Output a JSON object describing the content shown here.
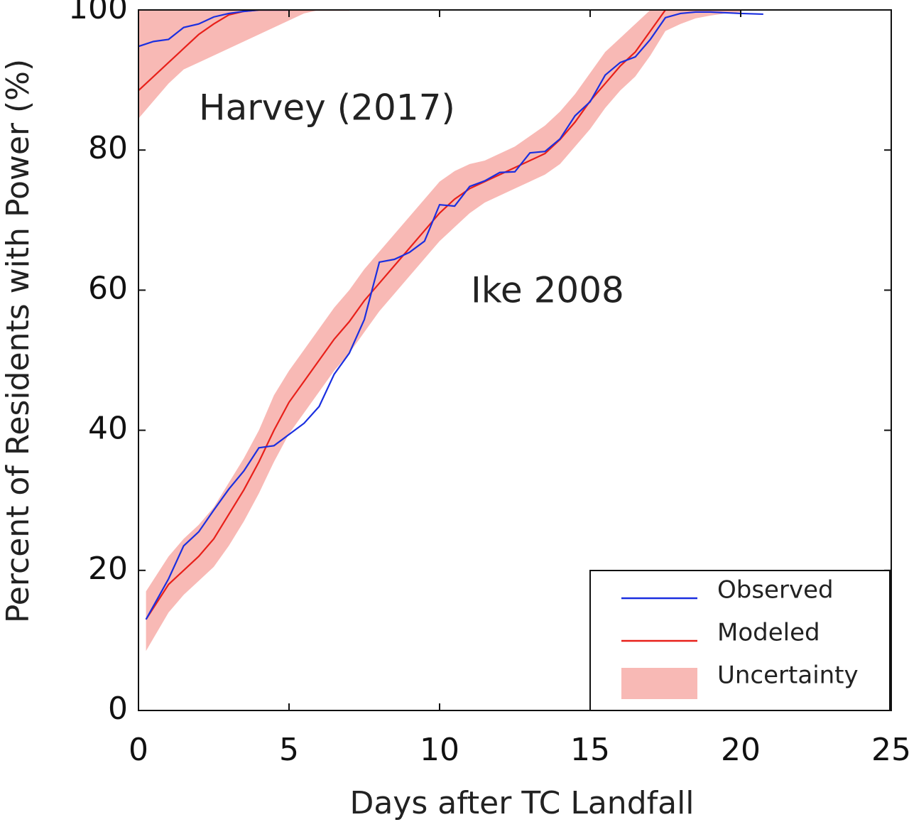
{
  "chart_data": {
    "type": "line",
    "xlabel": "Days after TC Landfall",
    "ylabel": "Percent of Residents with Power (%)",
    "xlim": [
      0,
      25
    ],
    "xticks": [
      0,
      5,
      10,
      15,
      20,
      25
    ],
    "ylim": [
      0,
      100
    ],
    "yticks": [
      0,
      20,
      40,
      60,
      80,
      100
    ],
    "legend": {
      "position": "lower right",
      "entries": [
        {
          "name": "Observed",
          "color": "#1a2fe0"
        },
        {
          "name": "Modeled",
          "color": "#e8201a"
        },
        {
          "name": "Uncertainty",
          "color": "#f8b9b5"
        }
      ]
    },
    "events": [
      {
        "label": "Harvey (2017)",
        "x": [
          0,
          0.5,
          1,
          1.5,
          2,
          2.5,
          3,
          3.5,
          4,
          4.5,
          5,
          5.5,
          6,
          6.5,
          7
        ],
        "observed": [
          94.8,
          95.5,
          95.8,
          97.5,
          98,
          99,
          99.5,
          99.8,
          100,
          100,
          100,
          null,
          null,
          null,
          null
        ],
        "modeled": [
          88.5,
          90.5,
          92.5,
          94.5,
          96.5,
          98,
          99.3,
          99.8,
          100,
          100,
          100,
          100,
          100,
          100,
          100
        ],
        "upper": [
          100,
          100,
          100,
          100,
          100,
          100,
          100,
          100,
          100,
          100,
          100,
          100,
          100,
          100,
          100
        ],
        "lower": [
          84.5,
          87,
          89.5,
          91.5,
          92.5,
          93.5,
          94.5,
          95.5,
          96.5,
          97.5,
          98.5,
          99.5,
          100,
          100,
          100
        ]
      },
      {
        "label": "Ike 2008",
        "x": [
          0.25,
          1,
          1.5,
          2,
          2.5,
          3,
          3.5,
          4,
          4.5,
          5,
          5.5,
          6,
          6.5,
          7,
          7.5,
          8,
          8.5,
          9,
          9.5,
          10,
          10.5,
          11,
          11.5,
          12,
          12.5,
          13,
          13.5,
          14,
          14.5,
          15,
          15.5,
          16,
          16.5,
          17,
          17.5,
          18,
          18.5,
          19,
          19.5,
          20,
          20.75
        ],
        "observed": [
          13,
          18.8,
          23.5,
          25.5,
          28.6,
          31.6,
          34.2,
          37.5,
          37.8,
          39.4,
          41,
          43.4,
          48,
          51,
          55.8,
          64,
          64.4,
          65.4,
          67,
          72.2,
          72,
          74.8,
          75.6,
          76.8,
          76.9,
          79.6,
          79.8,
          81.6,
          84.9,
          86.9,
          90.7,
          92.5,
          93.3,
          95.8,
          98.9,
          99.5,
          99.7,
          99.7,
          99.6,
          99.5,
          99.4
        ],
        "modeled": [
          13,
          18,
          20,
          22,
          24.5,
          28,
          31.5,
          35.5,
          40,
          44,
          47,
          50,
          53,
          55.5,
          58.5,
          61,
          63.5,
          66,
          68.5,
          71,
          73,
          74.5,
          75.5,
          76.5,
          77.5,
          78.5,
          79.5,
          81.5,
          84,
          87,
          89.5,
          92,
          94,
          97,
          100,
          100,
          100,
          100,
          100,
          100,
          null
        ],
        "upper": [
          17,
          22,
          24.5,
          26.5,
          29,
          32.5,
          36,
          40,
          45,
          48.5,
          51.5,
          54.5,
          57.5,
          60,
          63,
          65.5,
          68,
          70.5,
          73,
          75.5,
          77,
          78,
          78.5,
          79.5,
          80.5,
          82,
          83.5,
          85.5,
          88,
          91,
          94,
          96,
          98,
          100,
          100,
          100,
          100,
          100,
          100,
          100,
          null
        ],
        "lower": [
          8.5,
          14,
          16.5,
          18.5,
          20.5,
          23.5,
          27,
          31,
          35.5,
          39.5,
          42.5,
          45.5,
          48.5,
          51,
          54,
          57,
          59.5,
          62,
          64.5,
          67,
          69,
          71,
          72.5,
          73.5,
          74.5,
          75.5,
          76.5,
          78,
          80.5,
          83,
          86,
          88.5,
          90.5,
          93.5,
          97,
          98,
          98.8,
          99.2,
          99.5,
          99.7,
          null
        ]
      }
    ]
  }
}
